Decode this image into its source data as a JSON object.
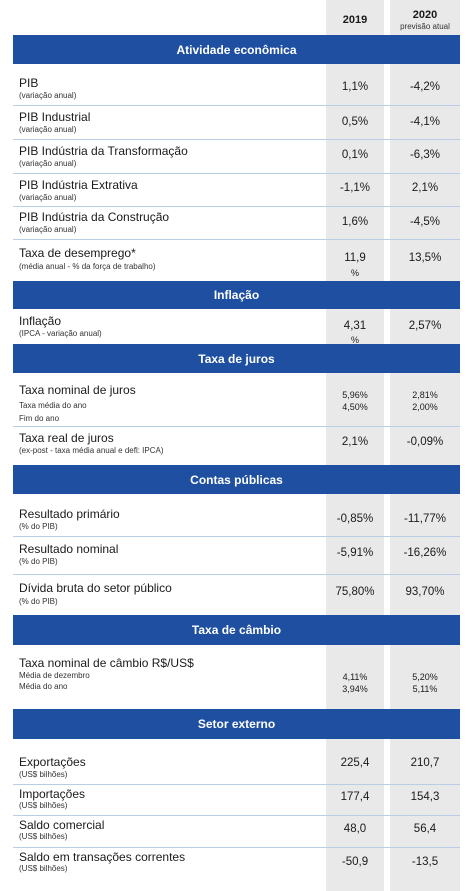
{
  "header": {
    "col1": "2019",
    "col2": "2020",
    "col2_sub": "previsão atual"
  },
  "sections": {
    "atividade": "Atividade econômica",
    "inflacao": "Inflação",
    "juros": "Taxa de juros",
    "contas": "Contas públicas",
    "cambio": "Taxa de câmbio",
    "externo": "Setor externo"
  },
  "rows": {
    "pib": {
      "label": "PIB",
      "sub": "(variação anual)",
      "v2019": "1,1%",
      "v2020": "-4,2%"
    },
    "pib_ind": {
      "label": "PIB Industrial",
      "sub": "(variação anual)",
      "v2019": "0,5%",
      "v2020": "-4,1%"
    },
    "pib_transf": {
      "label": "PIB Indústria da Transformação",
      "sub": "(variação anual)",
      "v2019": "0,1%",
      "v2020": "-6,3%"
    },
    "pib_extr": {
      "label": "PIB Indústria Extrativa",
      "sub": "(variação anual)",
      "v2019": "-1,1%",
      "v2020": "2,1%"
    },
    "pib_constr": {
      "label": "PIB Indústria da Construção",
      "sub": "(variação anual)",
      "v2019": "1,6%",
      "v2020": "-4,5%"
    },
    "desemprego": {
      "label": "Taxa de desemprego*",
      "sub": "(média anual - % da força de trabalho)",
      "v2019": "11,9",
      "v2019_unit": "%",
      "v2020": "13,5%"
    },
    "inflacao": {
      "label": "Inflação",
      "sub": "(IPCA - variação anual)",
      "v2019": "4,31",
      "v2019_unit": "%",
      "v2020": "2,57%"
    },
    "juros_nom": {
      "label": "Taxa nominal de juros",
      "sub1": "Taxa média do ano",
      "sub2": "Fim do ano",
      "v2019_a": "5,96%",
      "v2019_b": "4,50%",
      "v2020_a": "2,81%",
      "v2020_b": "2,00%"
    },
    "juros_real": {
      "label": "Taxa real de juros",
      "sub": "(ex-post - taxa média anual e defl: IPCA)",
      "v2019": "2,1%",
      "v2020": "-0,09%"
    },
    "primario": {
      "label": "Resultado primário",
      "sub": "(% do PIB)",
      "v2019": "-0,85%",
      "v2020": "-11,77%"
    },
    "nominal": {
      "label": "Resultado nominal",
      "sub": "(% do PIB)",
      "v2019": "-5,91%",
      "v2020": "-16,26%"
    },
    "divida": {
      "label": "Dívida bruta do setor público",
      "sub": "(% do PIB)",
      "v2019": "75,80%",
      "v2020": "93,70%"
    },
    "cambio": {
      "label": "Taxa nominal de câmbio R$/US$",
      "sub1": "Média de dezembro",
      "sub2": "Média do ano",
      "v2019_a": "4,11%",
      "v2019_b": "3,94%",
      "v2020_a": "5,20%",
      "v2020_b": "5,11%"
    },
    "export": {
      "label": "Exportações",
      "sub": "(US$ bilhões)",
      "v2019": "225,4",
      "v2020": "210,7"
    },
    "import": {
      "label": "Importações",
      "sub": "(US$ bilhões)",
      "v2019": "177,4",
      "v2020": "154,3"
    },
    "saldo": {
      "label": "Saldo comercial",
      "sub": "(US$ bilhões)",
      "v2019": "48,0",
      "v2020": "56,4"
    },
    "transacoes": {
      "label": "Saldo em transações correntes",
      "sub": "(US$ bilhões)",
      "v2019": "-50,9",
      "v2020": "-13,5"
    }
  }
}
